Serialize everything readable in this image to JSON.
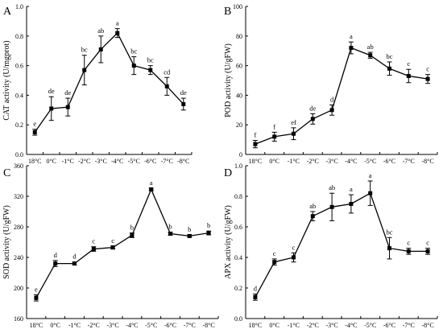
{
  "chart_data": [
    {
      "panel": "A",
      "type": "line",
      "ylabel": "CAT activity (U/mgprot)",
      "categories": [
        "18°C",
        "0°C",
        "-1°C",
        "-2°C",
        "-3°C",
        "-4°C",
        "-5°C",
        "-6°C",
        "-7°C",
        "-8°C"
      ],
      "values": [
        0.15,
        0.31,
        0.32,
        0.57,
        0.71,
        0.82,
        0.6,
        0.57,
        0.46,
        0.34
      ],
      "errors": [
        0.02,
        0.08,
        0.06,
        0.1,
        0.09,
        0.03,
        0.06,
        0.03,
        0.06,
        0.04
      ],
      "letters": [
        "e",
        "de",
        "de",
        "bc",
        "ab",
        "a",
        "bc",
        "bc",
        "cd",
        "de"
      ],
      "ylim": [
        0.0,
        1.0
      ],
      "yticks": [
        "0.0",
        "0.2",
        "0.4",
        "0.6",
        "0.8",
        "1.0"
      ]
    },
    {
      "panel": "B",
      "type": "line",
      "ylabel": "POD activity (U/gFW)",
      "categories": [
        "18°C",
        "0°C",
        "-1°C",
        "-2°C",
        "-3°C",
        "-4°C",
        "-5°C",
        "-6°C",
        "-7°C",
        "-8°C"
      ],
      "values": [
        7,
        12,
        14,
        24,
        30,
        72,
        67,
        58,
        53,
        51
      ],
      "errors": [
        2.5,
        3,
        4,
        3.5,
        3.5,
        4,
        2,
        4.5,
        4.5,
        3
      ],
      "letters": [
        "f",
        "f",
        "ef",
        "de",
        "d",
        "a",
        "ab",
        "bc",
        "c",
        "c"
      ],
      "ylim": [
        0,
        100
      ],
      "yticks": [
        "0",
        "20",
        "40",
        "60",
        "80",
        "100"
      ]
    },
    {
      "panel": "C",
      "type": "line",
      "ylabel": "SOD activity (U/gFW)",
      "categories": [
        "18°C",
        "0°C",
        "-1°C",
        "-2°C",
        "-3°C",
        "-4°C",
        "-5°C",
        "-6°C",
        "-7°C",
        "-8°C"
      ],
      "values": [
        187,
        232,
        232,
        251,
        253,
        269,
        329,
        271,
        268,
        272
      ],
      "errors": [
        4,
        4,
        2,
        3,
        2,
        3,
        1.5,
        2,
        1.5,
        2.5
      ],
      "letters": [
        "e",
        "d",
        "d",
        "c",
        "c",
        "b",
        "a",
        "b",
        "b",
        "b"
      ],
      "ylim": [
        160,
        360
      ],
      "yticks": [
        "160",
        "200",
        "240",
        "280",
        "320",
        "360"
      ]
    },
    {
      "panel": "D",
      "type": "line",
      "ylabel": "APX activity (U/gFW)",
      "categories": [
        "18°C",
        "0°C",
        "-1°C",
        "-2°C",
        "-3°C",
        "-4°C",
        "-5°C",
        "-6°C",
        "-7°C",
        "-8°C"
      ],
      "values": [
        0.14,
        0.37,
        0.4,
        0.67,
        0.73,
        0.75,
        0.82,
        0.46,
        0.44,
        0.44
      ],
      "errors": [
        0.02,
        0.02,
        0.03,
        0.03,
        0.09,
        0.06,
        0.08,
        0.07,
        0.02,
        0.02
      ],
      "letters": [
        "d",
        "c",
        "c",
        "ab",
        "ab",
        "a",
        "a",
        "bc",
        "c",
        "c"
      ],
      "ylim": [
        0.0,
        1.0
      ],
      "yticks": [
        "0.0",
        "0.2",
        "0.4",
        "0.6",
        "0.8",
        "1.0"
      ]
    }
  ]
}
